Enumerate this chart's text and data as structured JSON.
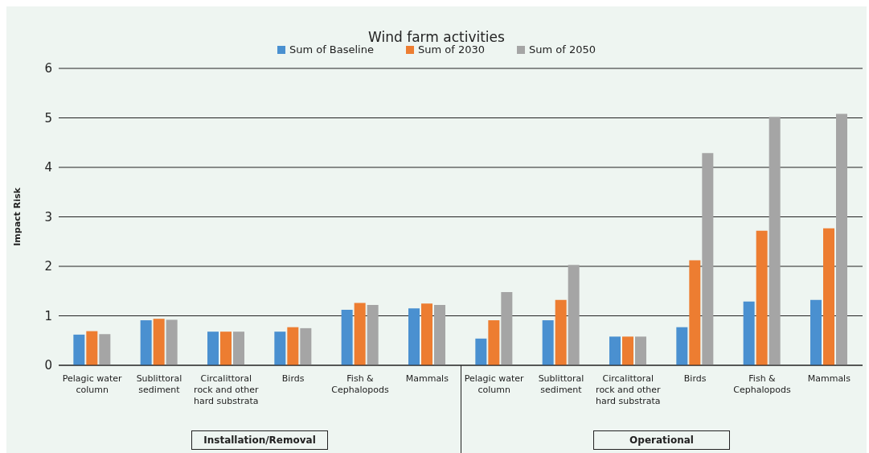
{
  "chart_data": {
    "type": "bar",
    "title": "Wind farm activities",
    "ylabel": "Impact Risk",
    "categories": [
      "Pelagic water column",
      "Sublittoral sediment",
      "Circalittoral rock and other hard substrata",
      "Birds",
      "Fish & Cephalopods",
      "Mammals",
      "Pelagic water column",
      "Sublittoral sediment",
      "Circalittoral rock and other hard substrata",
      "Birds",
      "Fish & Cephalopods",
      "Mammals"
    ],
    "series": [
      {
        "name": "Sum of Baseline",
        "color": "#4a90d0",
        "values": [
          0.62,
          0.91,
          0.68,
          0.68,
          1.12,
          1.15,
          0.54,
          0.91,
          0.58,
          0.77,
          1.29,
          1.32
        ]
      },
      {
        "name": "Sum of 2030",
        "color": "#ed7d31",
        "values": [
          0.69,
          0.94,
          0.68,
          0.77,
          1.26,
          1.25,
          0.91,
          1.32,
          0.58,
          2.12,
          2.72,
          2.77
        ]
      },
      {
        "name": "Sum of 2050",
        "color": "#a5a5a5",
        "values": [
          0.63,
          0.92,
          0.68,
          0.75,
          1.22,
          1.22,
          1.48,
          2.03,
          0.58,
          4.29,
          5.02,
          5.08
        ]
      }
    ],
    "annotations": [
      "Installation/Removal",
      "Operational"
    ],
    "ylim": [
      0,
      6
    ],
    "yticks": [
      0,
      1,
      2,
      3,
      4,
      5,
      6
    ],
    "grid": "y",
    "legend": "top"
  }
}
